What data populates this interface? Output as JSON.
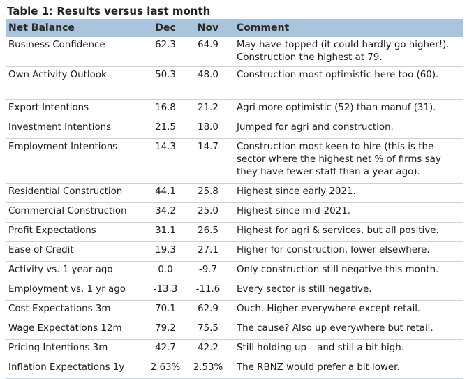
{
  "title": "Table 1: Results versus last month",
  "headers": {
    "label": "Net Balance",
    "dec": "Dec",
    "nov": "Nov",
    "comment": "Comment"
  },
  "rows": [
    {
      "label": "Business Confidence",
      "dec": "62.3",
      "nov": "64.9",
      "comment": "May have topped (it could hardly go higher!). Construction the highest at 79."
    },
    {
      "label": "Own Activity Outlook",
      "dec": "50.3",
      "nov": "48.0",
      "comment": "Construction most optimistic here too (60)."
    },
    {
      "label": "Export Intentions",
      "dec": "16.8",
      "nov": "21.2",
      "comment": "Agri more optimistic (52) than manuf (31)."
    },
    {
      "label": "Investment Intentions",
      "dec": "21.5",
      "nov": "18.0",
      "comment": "Jumped for agri and construction."
    },
    {
      "label": "Employment Intentions",
      "dec": "14.3",
      "nov": "14.7",
      "comment": "Construction most keen to hire (this is the sector where the highest net % of firms say they have fewer staff than a year ago)."
    },
    {
      "label": "Residential Construction",
      "dec": "44.1",
      "nov": "25.8",
      "comment": "Highest since early 2021."
    },
    {
      "label": "Commercial Construction",
      "dec": "34.2",
      "nov": "25.0",
      "comment": "Highest since mid-2021."
    },
    {
      "label": "Profit Expectations",
      "dec": "31.1",
      "nov": "26.5",
      "comment": "Highest for agri & services, but all positive."
    },
    {
      "label": "Ease of Credit",
      "dec": "19.3",
      "nov": "27.1",
      "comment": "Higher for construction, lower elsewhere."
    },
    {
      "label": "Activity vs. 1 year ago",
      "dec": "0.0",
      "nov": "-9.7",
      "comment": "Only construction still negative this month."
    },
    {
      "label": "Employment vs. 1 yr ago",
      "dec": "-13.3",
      "nov": "-11.6",
      "comment": "Every sector is still negative."
    },
    {
      "label": "Cost Expectations 3m",
      "dec": "70.1",
      "nov": "62.9",
      "comment": "Ouch. Higher everywhere except retail."
    },
    {
      "label": "Wage Expectations 12m",
      "dec": "79.2",
      "nov": "75.5",
      "comment": "The cause? Also up everywhere but retail."
    },
    {
      "label": "Pricing Intentions 3m",
      "dec": "42.7",
      "nov": "42.2",
      "comment": "Still holding up – and still a bit high."
    },
    {
      "label": "Inflation Expectations 1y",
      "dec": "2.63%",
      "nov": "2.53%",
      "comment": "The RBNZ would prefer a bit lower."
    }
  ],
  "colors": {
    "header_bg": "#a9c4dc",
    "row_divider": "#c9d3dc",
    "text": "#1a1a1a"
  }
}
